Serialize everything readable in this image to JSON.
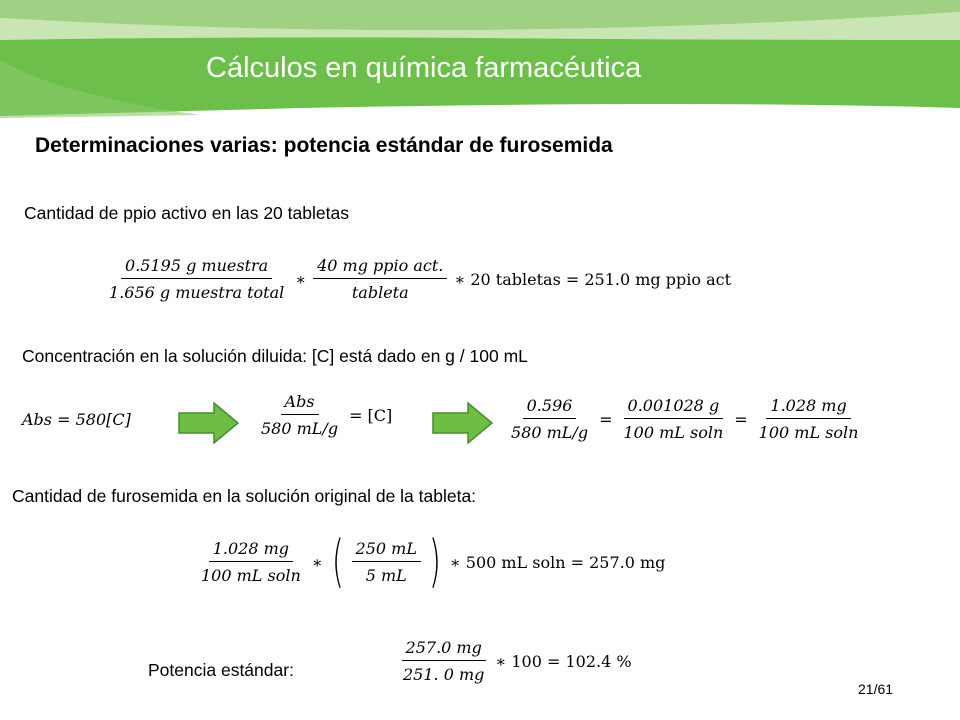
{
  "slide": {
    "title": "Cálculos en química farmacéutica",
    "subtitle": "Determinaciones varias: potencia estándar de furosemida",
    "page": "21/61",
    "colors": {
      "banner_dark": "#6dbf4b",
      "banner_light": "#c9e5b3",
      "banner_mid": "#9fd083",
      "arrow": "#6fbe44",
      "arrow_border": "#4a8a33"
    }
  },
  "section1": {
    "heading": "Cantidad de ppio activo en las 20 tabletas",
    "f1_num": "0.5195 g muestra",
    "f1_den": "1.656 g muestra total",
    "op1": "∗",
    "f2_num": "40 mg ppio act.",
    "f2_den": "tableta",
    "tail": "∗ 20 tabletas = 251.0 mg ppio act"
  },
  "section2": {
    "heading": "Concentración en la solución diluida: [C] está dado en g / 100 mL",
    "eq1": "Abs = 580[C]",
    "f_abs_num": "Abs",
    "f_abs_den": "580 mL/g",
    "eq2_rhs": "= [C]",
    "f3_num": "0.596",
    "f3_den": "580 mL/g",
    "eq_sign": "=",
    "f4_num": "0.001028 g",
    "f4_den": "100 mL soln",
    "f5_num": "1.028 mg",
    "f5_den": "100 mL soln"
  },
  "section3": {
    "heading": "Cantidad de furosemida en la solución original de la tableta:",
    "f6_num": "1.028 mg",
    "f6_den": "100 mL soln",
    "op": "∗",
    "paren_open": "(",
    "f7_num": "250 mL",
    "f7_den": "5 mL",
    "paren_close": ")",
    "tail": "∗ 500 mL soln = 257.0 mg"
  },
  "section4": {
    "label": "Potencia estándar:",
    "f8_num": "257.0 mg",
    "f8_den": "251. 0 mg",
    "tail": "∗ 100 = 102.4 %"
  }
}
